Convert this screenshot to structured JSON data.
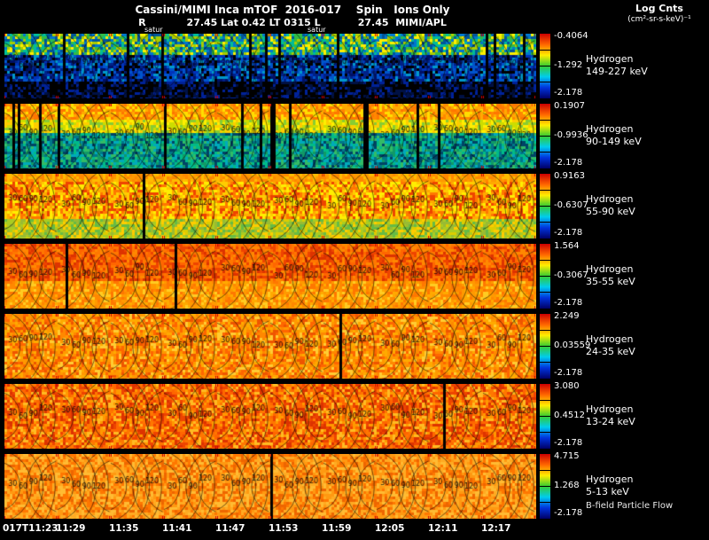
{
  "header": {
    "title": "Cassini/MIMI Inca mTOF  2016-017    Spin   Ions Only",
    "ephemeris": "R            27.45 Lat 0.42 LT 0315 L           27.45  MIMI/APL",
    "satur": "satur",
    "legend_title": "Log Cnts",
    "legend_units": "(cm²-sr-s-keV)⁻¹"
  },
  "time_axis": {
    "ticks": [
      "017T11:23",
      "11:29",
      "11:35",
      "11:41",
      "11:47",
      "11:53",
      "11:59",
      "12:05",
      "12:11",
      "12:17"
    ]
  },
  "chart_data": {
    "type": "heatmap",
    "title": "Cassini/MIMI Inca mTOF 2016-017 Spin Ions Only",
    "x_ticks": [
      "017T11:23",
      "11:29",
      "11:35",
      "11:41",
      "11:47",
      "11:53",
      "11:59",
      "12:05",
      "12:11",
      "12:17"
    ],
    "panels_per_row": 10,
    "contour_labels": [
      "30",
      "60",
      "90",
      "120"
    ],
    "colorbar": {
      "label": "Log Cnts (cm²-sr-s-keV)⁻¹",
      "gradient": [
        "#cc0000",
        "#ff6600",
        "#ffee00",
        "#33cc33",
        "#00ccee",
        "#0033dd",
        "#000066"
      ]
    },
    "rows": [
      {
        "species": "Hydrogen",
        "range": "149-227 keV",
        "clim_max": "-0.4064",
        "clim_mid": "-1.292",
        "clim_min": "-2.178",
        "gap_chance": 0.06,
        "bands": [
          {
            "to": 0.3,
            "colors": [
              "#aacc00",
              "#33bb44",
              "#00bb99",
              "#ffee00",
              "#0077cc",
              "#005599"
            ]
          },
          {
            "to": 0.72,
            "colors": [
              "#0033bb",
              "#002288",
              "#0055cc",
              "#001166",
              "#000000",
              "#0099cc"
            ]
          },
          {
            "to": 1.01,
            "colors": [
              "#000000",
              "#001144",
              "#002299",
              "#000000"
            ]
          }
        ]
      },
      {
        "species": "Hydrogen",
        "range": "90-149 keV",
        "clim_max": "0.1907",
        "clim_mid": "-0.9936",
        "clim_min": "-2.178",
        "gap_chance": 0.05,
        "bands": [
          {
            "to": 0.22,
            "colors": [
              "#ff7700",
              "#ffaa00",
              "#ffdd00",
              "#ff8800"
            ]
          },
          {
            "to": 0.45,
            "colors": [
              "#ffee00",
              "#ccdd00",
              "#88cc33",
              "#ffcc00"
            ]
          },
          {
            "to": 1.01,
            "colors": [
              "#33bb66",
              "#00bb88",
              "#00aabb",
              "#007788",
              "#119966",
              "#004466"
            ]
          }
        ]
      },
      {
        "species": "Hydrogen",
        "range": "55-90 keV",
        "clim_max": "0.9163",
        "clim_mid": "-0.6307",
        "clim_min": "-2.178",
        "gap_chance": 0.015,
        "bands": [
          {
            "to": 0.12,
            "colors": [
              "#ff8800",
              "#ffbb00",
              "#ff9900"
            ]
          },
          {
            "to": 0.68,
            "colors": [
              "#ffcc00",
              "#ffee00",
              "#ffaa00",
              "#ff7700",
              "#ee4400"
            ]
          },
          {
            "to": 1.01,
            "colors": [
              "#ddcc00",
              "#aacc22",
              "#66bb44",
              "#ffcc00",
              "#99bb33"
            ]
          }
        ]
      },
      {
        "species": "Hydrogen",
        "range": "35-55 keV",
        "clim_max": "1.564",
        "clim_mid": "-0.3067",
        "clim_min": "-2.178",
        "gap_chance": 0.01,
        "bands": [
          {
            "to": 0.55,
            "colors": [
              "#ee4400",
              "#ff6600",
              "#ff8800",
              "#dd3300",
              "#ff7700"
            ]
          },
          {
            "to": 1.01,
            "colors": [
              "#ff8800",
              "#ffaa00",
              "#ffcc22",
              "#ff7700",
              "#ff9900"
            ]
          }
        ]
      },
      {
        "species": "Hydrogen",
        "range": "24-35 keV",
        "clim_max": "2.249",
        "clim_mid": "0.03559",
        "clim_min": "-2.178",
        "gap_chance": 0.01,
        "bands": [
          {
            "to": 1.01,
            "colors": [
              "#ff6600",
              "#ff8800",
              "#ffaa00",
              "#ffcc33",
              "#ee5500",
              "#ff9900"
            ]
          }
        ]
      },
      {
        "species": "Hydrogen",
        "range": "13-24 keV",
        "clim_max": "3.080",
        "clim_mid": "0.4512",
        "clim_min": "-2.178",
        "gap_chance": 0.01,
        "bands": [
          {
            "to": 1.01,
            "colors": [
              "#ee4400",
              "#ff6600",
              "#ff7700",
              "#ff9900",
              "#dd3300",
              "#ffbb22"
            ]
          }
        ]
      },
      {
        "species": "Hydrogen",
        "range": "5-13 keV",
        "clim_max": "4.715",
        "clim_mid": "1.268",
        "clim_min": "-2.178",
        "gap_chance": 0.01,
        "footnote": "B-field Particle Flow",
        "bands": [
          {
            "to": 1.01,
            "colors": [
              "#ff7700",
              "#ff9911",
              "#ffbb33",
              "#ee6600",
              "#ffaa22"
            ]
          }
        ]
      }
    ]
  }
}
